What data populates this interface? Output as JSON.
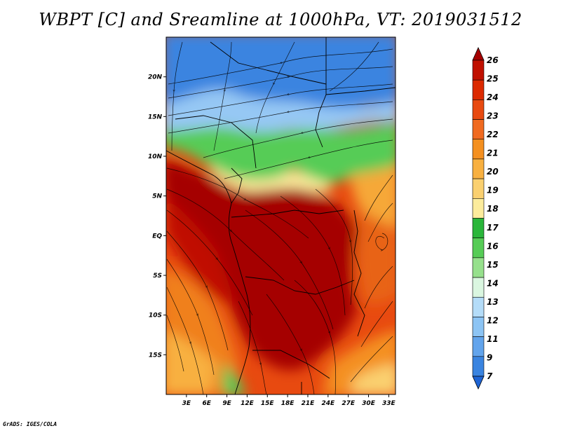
{
  "title": "WBPT [C] and Sreamline at 1000hPa, VT: 2019031512",
  "credit": "GrADS: IGES/COLA",
  "map": {
    "variable": "Wet-bulb potential temperature [C] with 1000hPa streamlines",
    "lat_ticks": [
      {
        "label": "20N",
        "lat": 20
      },
      {
        "label": "15N",
        "lat": 15
      },
      {
        "label": "10N",
        "lat": 10
      },
      {
        "label": "5N",
        "lat": 5
      },
      {
        "label": "EQ",
        "lat": 0
      },
      {
        "label": "5S",
        "lat": -5
      },
      {
        "label": "10S",
        "lat": -10
      },
      {
        "label": "15S",
        "lat": -15
      }
    ],
    "lon_ticks": [
      {
        "label": "3E",
        "lon": 3
      },
      {
        "label": "6E",
        "lon": 6
      },
      {
        "label": "9E",
        "lon": 9
      },
      {
        "label": "12E",
        "lon": 12
      },
      {
        "label": "15E",
        "lon": 15
      },
      {
        "label": "18E",
        "lon": 18
      },
      {
        "label": "21E",
        "lon": 21
      },
      {
        "label": "24E",
        "lon": 24
      },
      {
        "label": "27E",
        "lon": 27
      },
      {
        "label": "30E",
        "lon": 30
      },
      {
        "label": "33E",
        "lon": 33
      }
    ],
    "lon_range": [
      0,
      34
    ],
    "lat_range": [
      -20,
      25
    ]
  },
  "colorbar": {
    "levels": [
      "26",
      "25",
      "24",
      "23",
      "22",
      "21",
      "20",
      "19",
      "18",
      "17",
      "16",
      "15",
      "14",
      "13",
      "12",
      "11",
      "9",
      "7"
    ],
    "colors": [
      "#a50000",
      "#c01000",
      "#dc2a00",
      "#e84a10",
      "#f06a20",
      "#f49020",
      "#f8b040",
      "#fad070",
      "#fcec9c",
      "#2ab63a",
      "#56cc56",
      "#96e08c",
      "#daf6e0",
      "#b4dcf8",
      "#8cc4f4",
      "#62a4ec",
      "#3a84e0",
      "#1e64d4"
    ]
  },
  "colors": {
    "hot": "#a50000",
    "warm": "#e84a10",
    "cool_green": "#56cc56",
    "cold_blue": "#3a84e0"
  }
}
